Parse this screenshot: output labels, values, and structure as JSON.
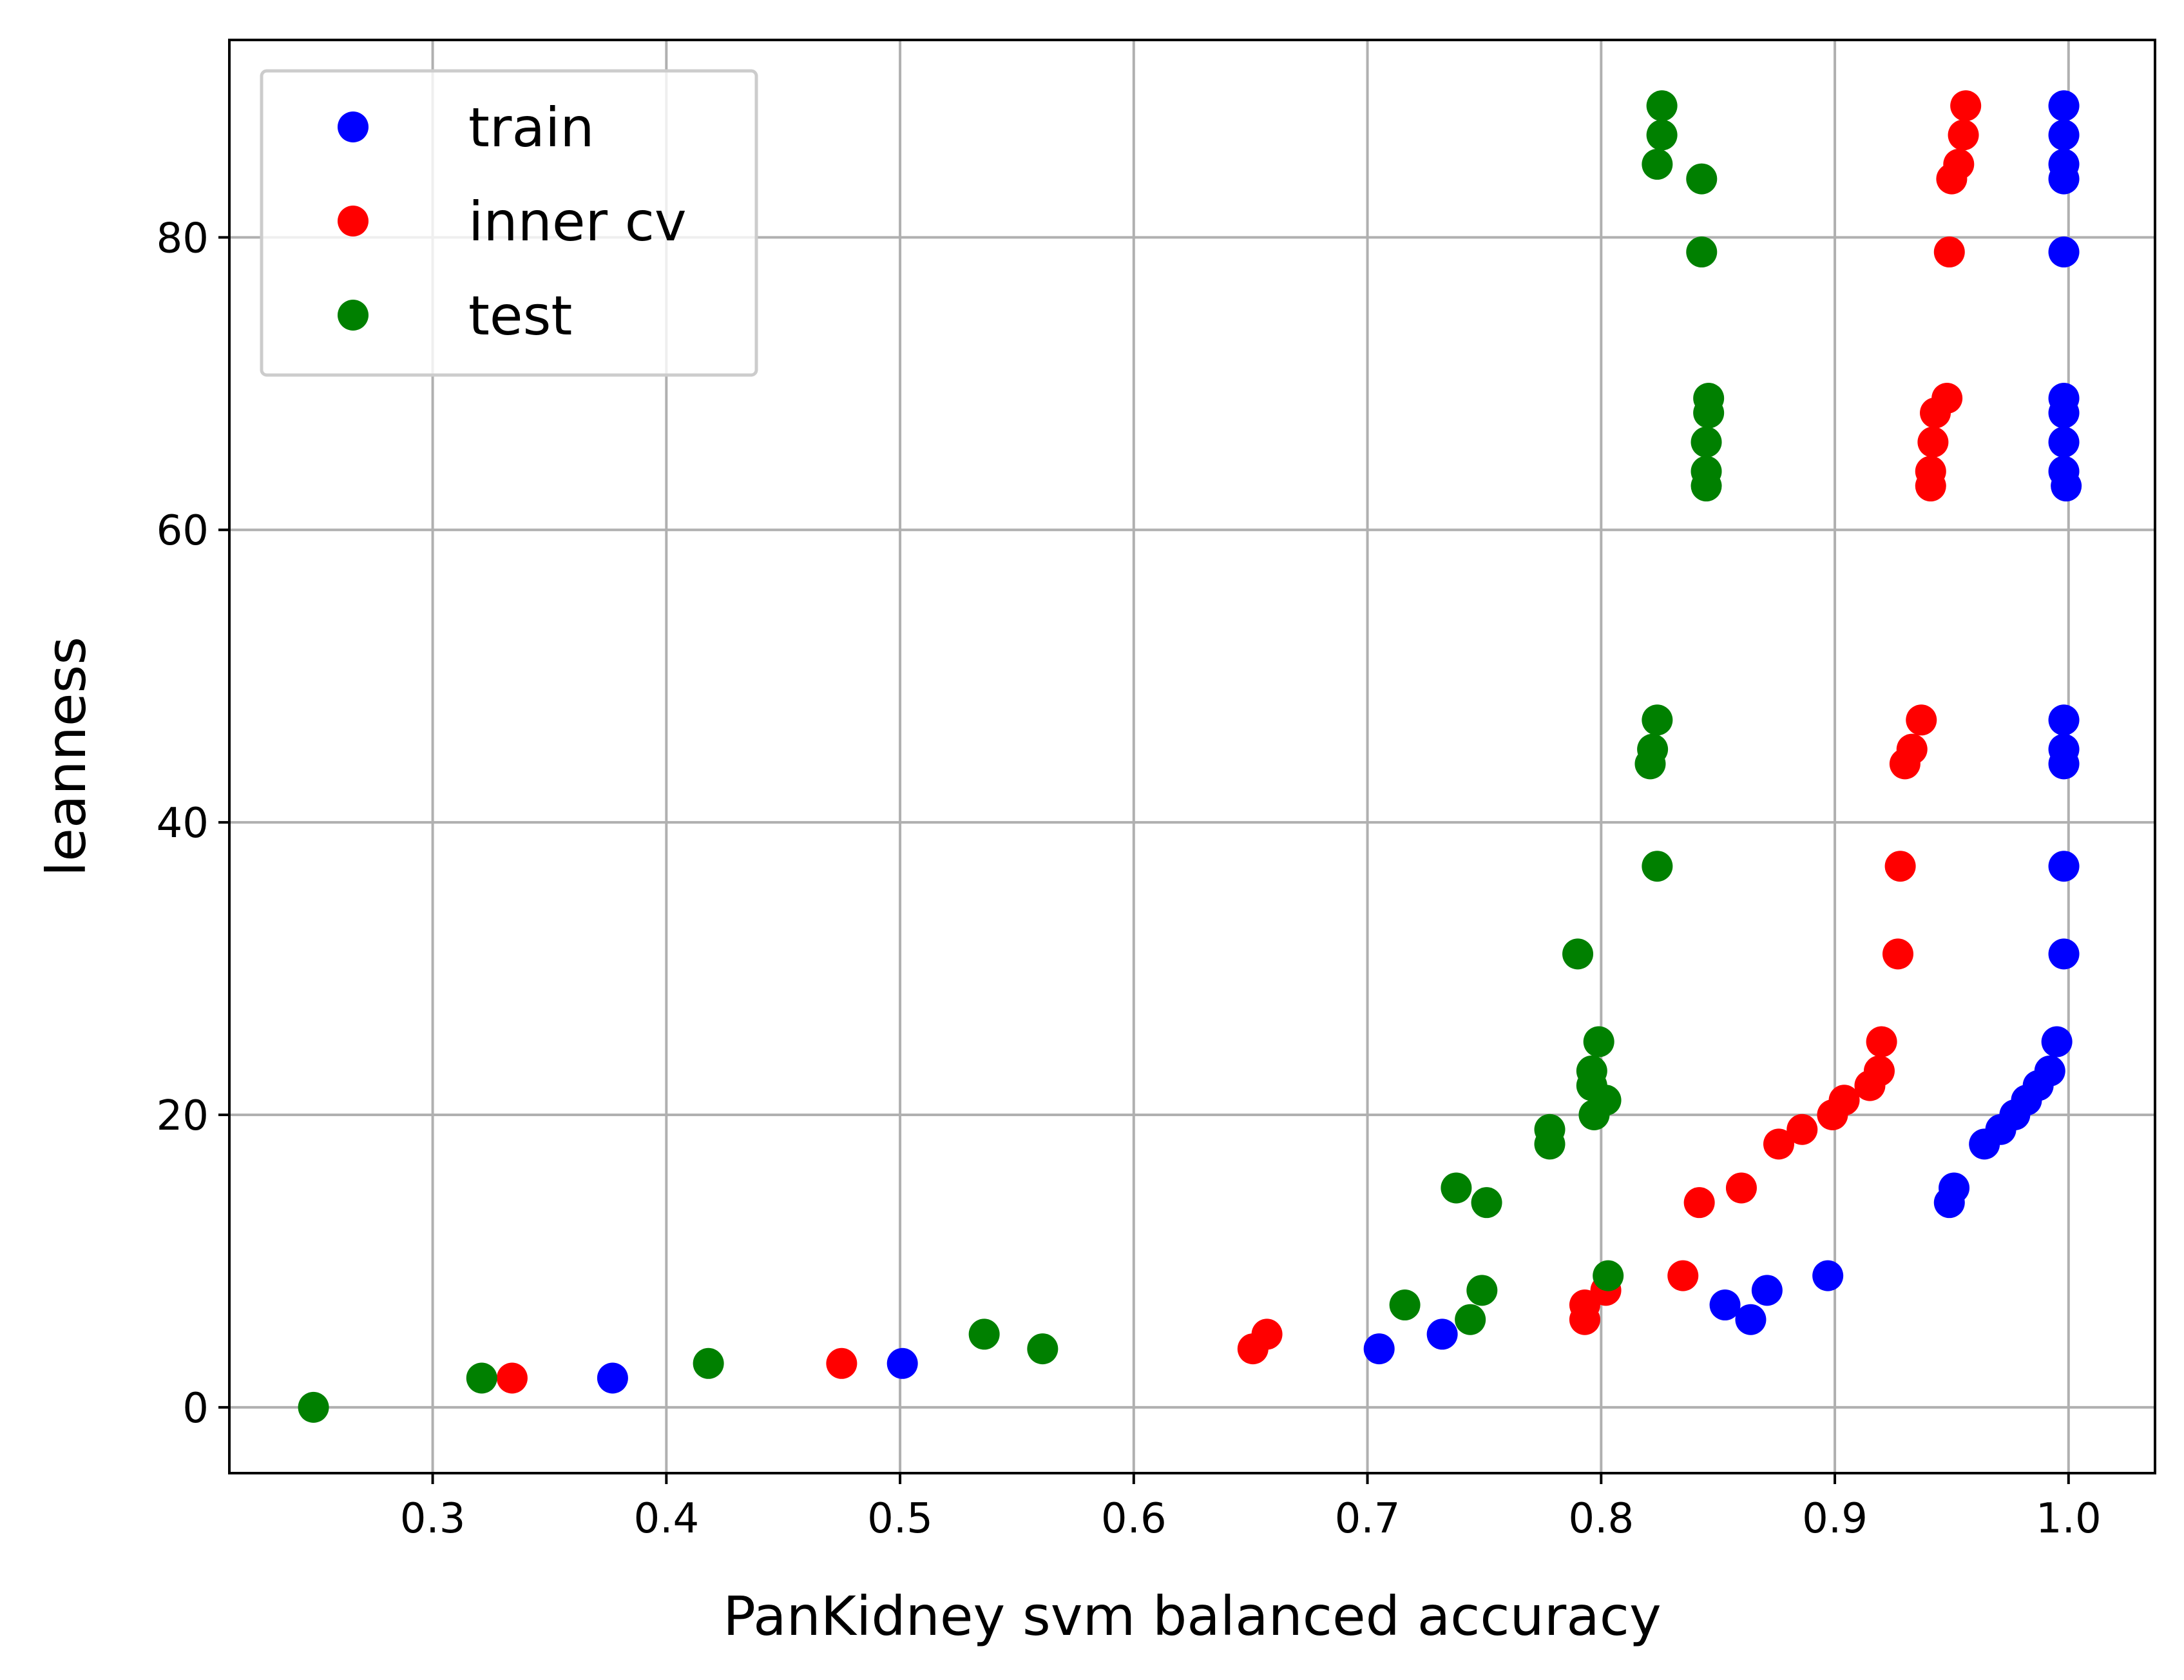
{
  "chart_data": {
    "type": "scatter",
    "xlabel": "PanKidney svm balanced accuracy",
    "ylabel": "leanness",
    "xlim": [
      0.213,
      1.037
    ],
    "ylim": [
      -4.5,
      93.5
    ],
    "xticks": [
      0.3,
      0.4,
      0.5,
      0.6,
      0.7,
      0.8,
      0.9,
      1.0
    ],
    "xtick_labels": [
      "0.3",
      "0.4",
      "0.5",
      "0.6",
      "0.7",
      "0.8",
      "0.9",
      "1.0"
    ],
    "yticks": [
      0,
      20,
      40,
      60,
      80
    ],
    "ytick_labels": [
      "0",
      "20",
      "40",
      "60",
      "80"
    ],
    "grid": true,
    "legend_position": "top-left",
    "series": [
      {
        "name": "train",
        "color": "#0000ff",
        "points": [
          [
            0.377,
            2
          ],
          [
            0.501,
            3
          ],
          [
            0.705,
            4
          ],
          [
            0.732,
            5
          ],
          [
            0.864,
            6
          ],
          [
            0.853,
            7
          ],
          [
            0.871,
            8
          ],
          [
            0.897,
            9
          ],
          [
            0.949,
            14
          ],
          [
            0.951,
            15
          ],
          [
            0.964,
            18
          ],
          [
            0.971,
            19
          ],
          [
            0.977,
            20
          ],
          [
            0.982,
            21
          ],
          [
            0.987,
            22
          ],
          [
            0.992,
            23
          ],
          [
            0.995,
            25
          ],
          [
            0.998,
            31
          ],
          [
            0.998,
            37
          ],
          [
            0.998,
            44
          ],
          [
            0.998,
            45
          ],
          [
            0.998,
            47
          ],
          [
            0.999,
            63
          ],
          [
            0.998,
            64
          ],
          [
            0.998,
            66
          ],
          [
            0.998,
            68
          ],
          [
            0.998,
            69
          ],
          [
            0.998,
            79
          ],
          [
            0.998,
            84
          ],
          [
            0.998,
            85
          ],
          [
            0.998,
            87
          ],
          [
            0.998,
            89
          ]
        ]
      },
      {
        "name": "inner cv",
        "color": "#ff0000",
        "points": [
          [
            0.334,
            2
          ],
          [
            0.475,
            3
          ],
          [
            0.651,
            4
          ],
          [
            0.657,
            5
          ],
          [
            0.793,
            6
          ],
          [
            0.793,
            7
          ],
          [
            0.802,
            8
          ],
          [
            0.835,
            9
          ],
          [
            0.842,
            14
          ],
          [
            0.86,
            15
          ],
          [
            0.876,
            18
          ],
          [
            0.886,
            19
          ],
          [
            0.899,
            20
          ],
          [
            0.904,
            21
          ],
          [
            0.915,
            22
          ],
          [
            0.919,
            23
          ],
          [
            0.92,
            25
          ],
          [
            0.927,
            31
          ],
          [
            0.928,
            37
          ],
          [
            0.93,
            44
          ],
          [
            0.933,
            45
          ],
          [
            0.937,
            47
          ],
          [
            0.941,
            63
          ],
          [
            0.941,
            64
          ],
          [
            0.942,
            66
          ],
          [
            0.943,
            68
          ],
          [
            0.948,
            69
          ],
          [
            0.949,
            79
          ],
          [
            0.95,
            84
          ],
          [
            0.953,
            85
          ],
          [
            0.955,
            87
          ],
          [
            0.956,
            89
          ]
        ]
      },
      {
        "name": "test",
        "color": "#008000",
        "points": [
          [
            0.249,
            0
          ],
          [
            0.321,
            2
          ],
          [
            0.418,
            3
          ],
          [
            0.536,
            5
          ],
          [
            0.561,
            4
          ],
          [
            0.716,
            7
          ],
          [
            0.744,
            6
          ],
          [
            0.749,
            8
          ],
          [
            0.803,
            9
          ],
          [
            0.738,
            15
          ],
          [
            0.751,
            14
          ],
          [
            0.778,
            18
          ],
          [
            0.778,
            19
          ],
          [
            0.797,
            20
          ],
          [
            0.802,
            21
          ],
          [
            0.796,
            22
          ],
          [
            0.796,
            23
          ],
          [
            0.799,
            25
          ],
          [
            0.79,
            31
          ],
          [
            0.824,
            37
          ],
          [
            0.821,
            44
          ],
          [
            0.822,
            45
          ],
          [
            0.824,
            47
          ],
          [
            0.845,
            63
          ],
          [
            0.845,
            64
          ],
          [
            0.845,
            66
          ],
          [
            0.846,
            68
          ],
          [
            0.846,
            69
          ],
          [
            0.843,
            79
          ],
          [
            0.843,
            84
          ],
          [
            0.824,
            85
          ],
          [
            0.826,
            87
          ],
          [
            0.826,
            89
          ]
        ]
      }
    ]
  }
}
